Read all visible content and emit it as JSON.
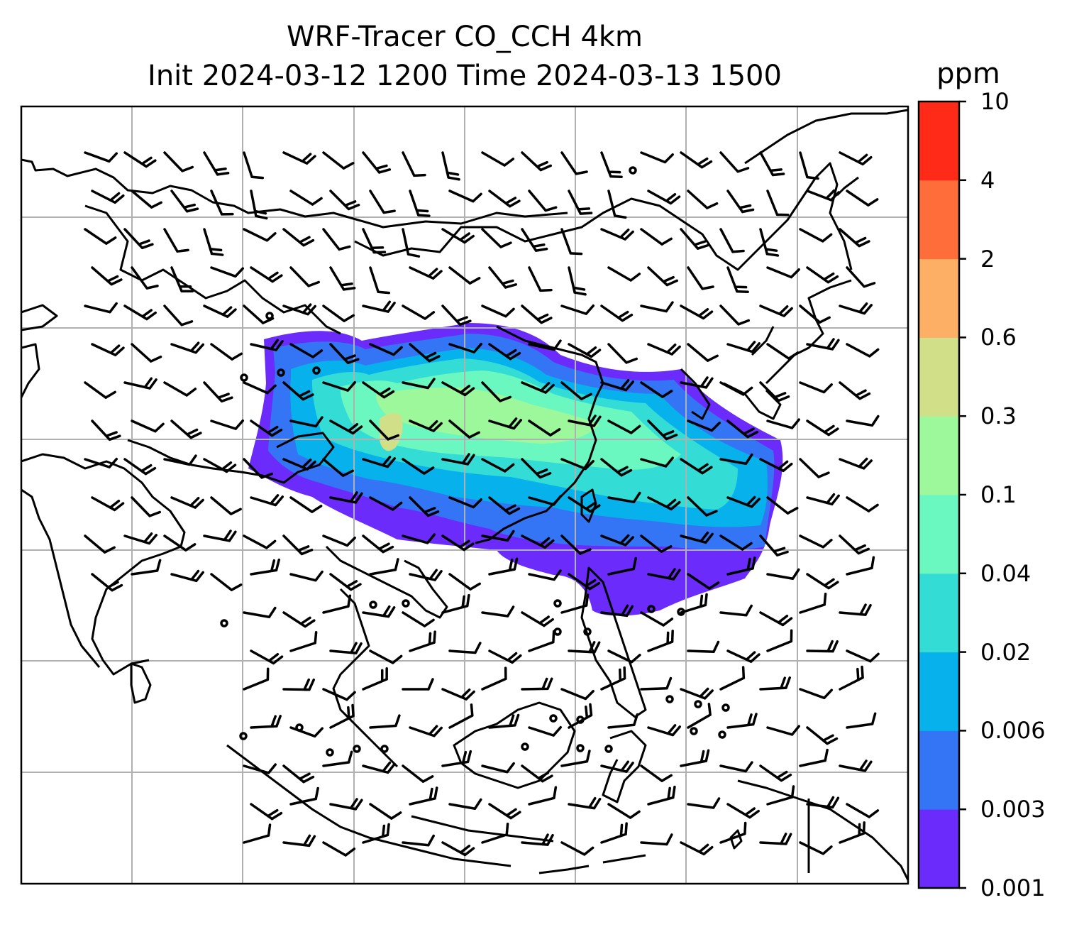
{
  "title": {
    "line1": "WRF-Tracer CO_CCH 4km",
    "line2": "Init 2024-03-12 1200 Time 2024-03-13 1500"
  },
  "colorbar": {
    "unit": "ppm",
    "levels": [
      "0.001",
      "0.003",
      "0.006",
      "0.02",
      "0.04",
      "0.1",
      "0.3",
      "0.6",
      "2",
      "4",
      "10"
    ],
    "colors": [
      "#6A2BFB",
      "#3375F5",
      "#06B1EC",
      "#33DCD4",
      "#6AF8C0",
      "#9CF89B",
      "#D1E088",
      "#FDAF66",
      "#FF6E3A",
      "#FF2A18"
    ]
  },
  "map": {
    "coastline_color": "#000000",
    "gridline_color": "#b0b0b0",
    "wind_barb_color": "#000000"
  }
}
